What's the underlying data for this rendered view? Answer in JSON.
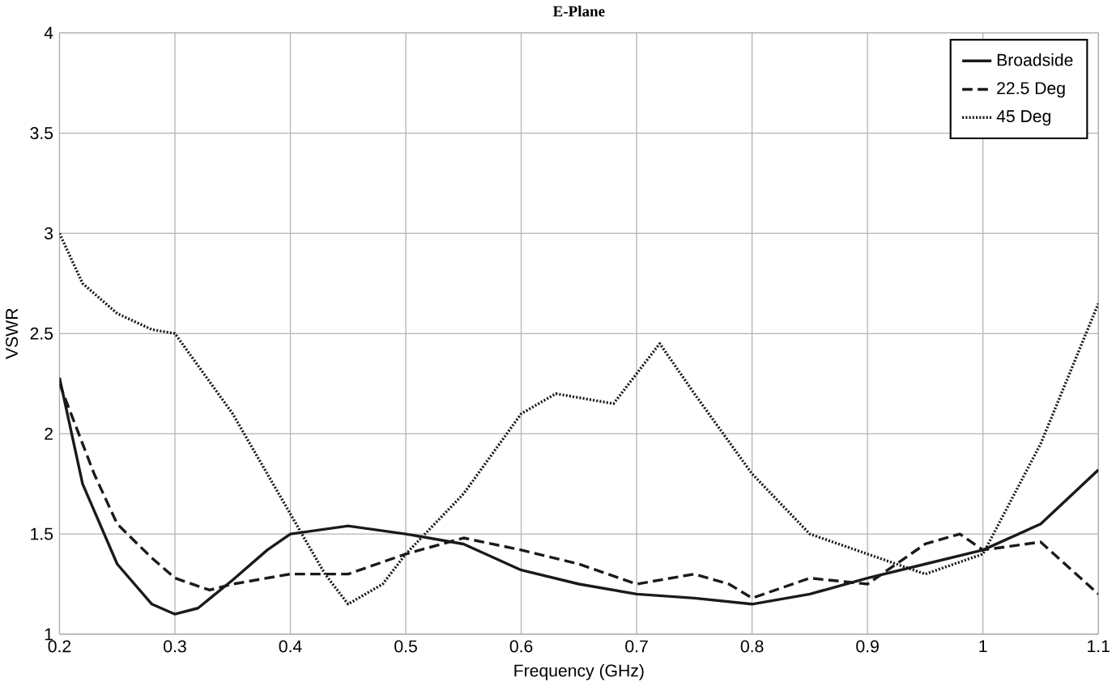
{
  "chart_data": {
    "type": "line",
    "title": "E-Plane",
    "xlabel": "Frequency (GHz)",
    "ylabel": "VSWR",
    "xlim": [
      0.2,
      1.1
    ],
    "xticks": [
      0.2,
      0.3,
      0.4,
      0.5,
      0.6,
      0.7,
      0.8,
      0.9,
      1,
      1.1
    ],
    "ylim": [
      1,
      4
    ],
    "yticks": [
      1,
      1.5,
      2,
      2.5,
      3,
      3.5,
      4
    ],
    "grid": true,
    "legend": "top right",
    "marker": "none",
    "series": [
      {
        "name": "Broadside",
        "color": "#1a1a1a",
        "line_style": "solid",
        "x": [
          0.2,
          0.22,
          0.25,
          0.28,
          0.3,
          0.32,
          0.35,
          0.38,
          0.4,
          0.45,
          0.5,
          0.55,
          0.6,
          0.65,
          0.7,
          0.75,
          0.8,
          0.85,
          0.9,
          0.95,
          1.0,
          1.05,
          1.1
        ],
        "values": [
          2.28,
          1.75,
          1.35,
          1.15,
          1.1,
          1.13,
          1.27,
          1.42,
          1.5,
          1.54,
          1.5,
          1.45,
          1.32,
          1.25,
          1.2,
          1.18,
          1.15,
          1.2,
          1.28,
          1.35,
          1.42,
          1.55,
          1.82
        ]
      },
      {
        "name": "22.5 Deg",
        "color": "#1a1a1a",
        "line_style": "dashed",
        "x": [
          0.2,
          0.23,
          0.25,
          0.28,
          0.3,
          0.33,
          0.35,
          0.4,
          0.45,
          0.5,
          0.55,
          0.6,
          0.65,
          0.7,
          0.75,
          0.78,
          0.8,
          0.85,
          0.9,
          0.95,
          0.98,
          1.0,
          1.05,
          1.1
        ],
        "values": [
          2.25,
          1.8,
          1.55,
          1.38,
          1.28,
          1.22,
          1.25,
          1.3,
          1.3,
          1.4,
          1.48,
          1.42,
          1.35,
          1.25,
          1.3,
          1.25,
          1.18,
          1.28,
          1.25,
          1.45,
          1.5,
          1.42,
          1.46,
          1.2
        ]
      },
      {
        "name": "45 Deg",
        "color": "#1a1a1a",
        "line_style": "dotted",
        "x": [
          0.2,
          0.22,
          0.25,
          0.28,
          0.3,
          0.35,
          0.4,
          0.43,
          0.45,
          0.48,
          0.5,
          0.55,
          0.6,
          0.63,
          0.68,
          0.72,
          0.75,
          0.8,
          0.85,
          0.9,
          0.95,
          1.0,
          1.05,
          1.1
        ],
        "values": [
          3.0,
          2.75,
          2.6,
          2.52,
          2.5,
          2.1,
          1.6,
          1.3,
          1.15,
          1.25,
          1.4,
          1.7,
          2.1,
          2.2,
          2.15,
          2.45,
          2.2,
          1.8,
          1.5,
          1.4,
          1.3,
          1.4,
          1.95,
          2.65
        ]
      }
    ]
  }
}
